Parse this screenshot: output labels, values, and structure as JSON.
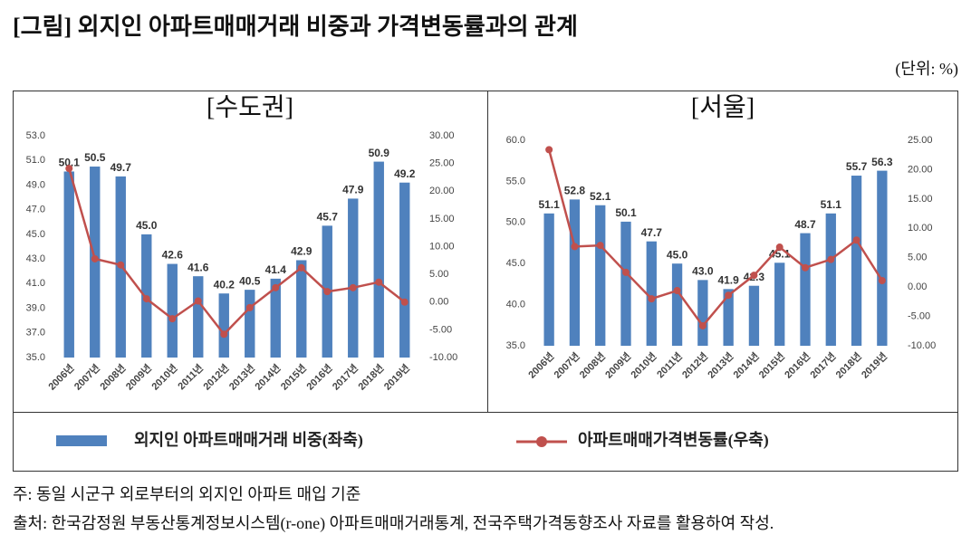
{
  "title": "[그림] 외지인 아파트매매거래 비중과 가격변동률과의 관계",
  "unit": "(단위: %)",
  "chart_data": [
    {
      "type": "bar-line",
      "title": "[수도권]",
      "categories": [
        "2006년",
        "2007년",
        "2008년",
        "2009년",
        "2010년",
        "2011년",
        "2012년",
        "2013년",
        "2014년",
        "2015년",
        "2016년",
        "2017년",
        "2018년",
        "2019년"
      ],
      "series": [
        {
          "name": "외지인 아파트매매거래 비중(좌축)",
          "color": "#4f81bd",
          "type": "bar",
          "values": [
            50.1,
            50.5,
            49.7,
            45.0,
            42.6,
            41.6,
            40.2,
            40.5,
            41.4,
            42.9,
            45.7,
            47.9,
            50.9,
            49.2
          ],
          "value_labels": [
            "50.1",
            "50.5",
            "49.7",
            "45.0",
            "42.6",
            "41.6",
            "40.2",
            "40.5",
            "41.4",
            "42.9",
            "45.7",
            "47.9",
            "50.9",
            "49.2"
          ]
        },
        {
          "name": "아파트매매가격변동률(우축)",
          "color": "#c0504d",
          "type": "line",
          "axis": "y2",
          "values": [
            24.1,
            7.8,
            6.7,
            0.6,
            -3.0,
            0.2,
            -5.8,
            -1.0,
            2.6,
            6.2,
            1.9,
            2.6,
            3.6,
            0.0
          ]
        }
      ],
      "ylim": [
        35,
        53
      ],
      "yticks": [
        {
          "value": 35,
          "label": "35.0"
        },
        {
          "value": 37,
          "label": "37.0"
        },
        {
          "value": 39,
          "label": "39.0"
        },
        {
          "value": 41,
          "label": "41.0"
        },
        {
          "value": 43,
          "label": "43.0"
        },
        {
          "value": 45,
          "label": "45.0"
        },
        {
          "value": 47,
          "label": "47.0"
        },
        {
          "value": 49,
          "label": "49.0"
        },
        {
          "value": 51,
          "label": "51.0"
        },
        {
          "value": 53,
          "label": "53.0"
        }
      ],
      "y2lim": [
        -10,
        30
      ],
      "y2ticks": [
        {
          "value": -10,
          "label": "-10.00"
        },
        {
          "value": -5,
          "label": "-5.00"
        },
        {
          "value": 0,
          "label": "0.00"
        },
        {
          "value": 5,
          "label": "5.00"
        },
        {
          "value": 10,
          "label": "10.00"
        },
        {
          "value": 15,
          "label": "15.00"
        },
        {
          "value": 20,
          "label": "20.00"
        },
        {
          "value": 25,
          "label": "25.00"
        },
        {
          "value": 30,
          "label": "30.00"
        }
      ]
    },
    {
      "type": "bar-line",
      "title": "[서울]",
      "categories": [
        "2006년",
        "2007년",
        "2008년",
        "2009년",
        "2010년",
        "2011년",
        "2012년",
        "2013년",
        "2014년",
        "2015년",
        "2016년",
        "2017년",
        "2018년",
        "2019년"
      ],
      "series": [
        {
          "color": "#4f81bd",
          "type": "bar",
          "values": [
            51.1,
            52.8,
            52.1,
            50.1,
            47.7,
            45.0,
            43.0,
            41.9,
            42.3,
            45.1,
            48.7,
            51.1,
            55.7,
            56.3
          ],
          "value_labels": [
            "51.1",
            "52.8",
            "52.1",
            "50.1",
            "47.7",
            "45.0",
            "43.0",
            "41.9",
            "42.3",
            "45.1",
            "48.7",
            "51.1",
            "55.7",
            "56.3"
          ]
        },
        {
          "color": "#c0504d",
          "type": "line",
          "axis": "y2",
          "values": [
            23.4,
            6.9,
            7.1,
            2.5,
            -2.0,
            -0.6,
            -6.6,
            -1.4,
            2.0,
            6.8,
            3.3,
            4.7,
            8.0,
            1.1
          ]
        }
      ],
      "ylim": [
        35,
        60
      ],
      "yticks": [
        {
          "value": 35,
          "label": "35.0"
        },
        {
          "value": 40,
          "label": "40.0"
        },
        {
          "value": 45,
          "label": "45.0"
        },
        {
          "value": 50,
          "label": "50.0"
        },
        {
          "value": 55,
          "label": "55.0"
        },
        {
          "value": 60,
          "label": "60.0"
        }
      ],
      "y2lim": [
        -10,
        25
      ],
      "y2ticks": [
        {
          "value": -10,
          "label": "-10.00"
        },
        {
          "value": -5,
          "label": "-5.00"
        },
        {
          "value": 0,
          "label": "0.00"
        },
        {
          "value": 5,
          "label": "5.00"
        },
        {
          "value": 10,
          "label": "10.00"
        },
        {
          "value": 15,
          "label": "15.00"
        },
        {
          "value": 20,
          "label": "20.00"
        },
        {
          "value": 25,
          "label": "25.00"
        }
      ]
    }
  ],
  "notes": [
    "주: 동일 시군구 외로부터의 외지인 아파트 매입 기준",
    "출처: 한국감정원 부동산통계정보시스템(r-one) 아파트매매거래통계, 전국주택가격동향조사 자료를 활용하여 작성."
  ]
}
